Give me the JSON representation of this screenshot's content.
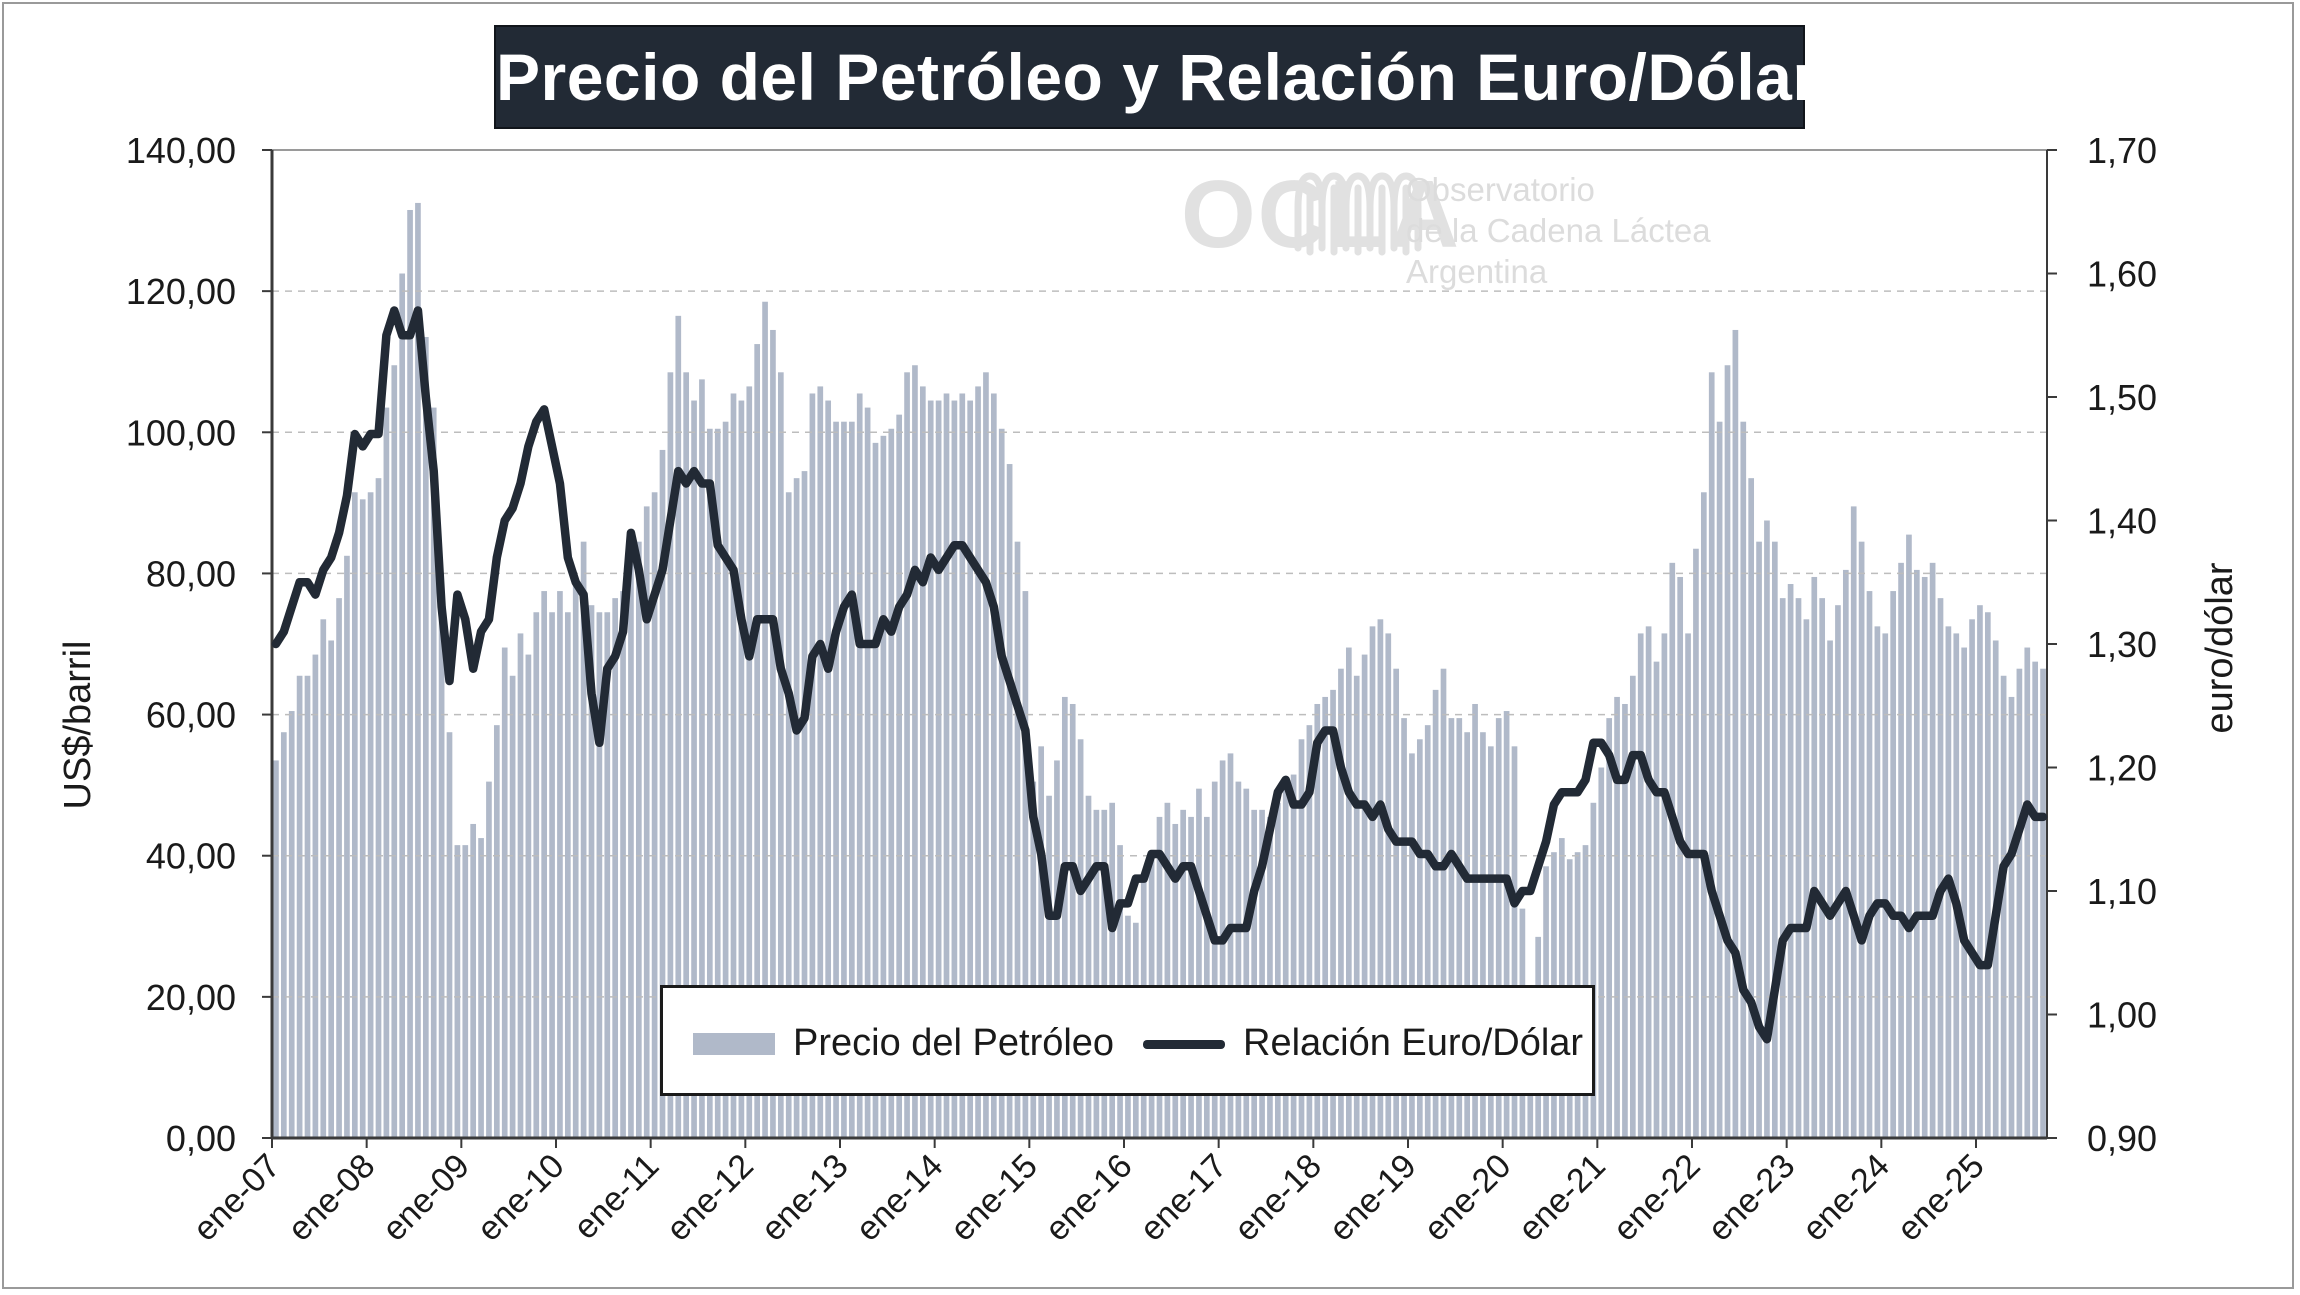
{
  "title": "Precio del Petróleo y Relación Euro/Dólar",
  "logo": {
    "name": "OCLA",
    "line1": "Observatorio",
    "line2": "de la Cadena Láctea",
    "line3": "Argentina"
  },
  "legend": {
    "bars_label": "Precio del Petróleo",
    "line_label": "Relación Euro/Dólar"
  },
  "colors": {
    "bars": "#b0b9c9",
    "line": "#222a35",
    "grid": "#bdbdbd",
    "title_bg": "#222a35"
  },
  "chart_data": {
    "type": "bar",
    "title": "Precio del Petróleo y Relación Euro/Dólar",
    "x_tick_labels": [
      "ene-07",
      "ene-08",
      "ene-09",
      "ene-10",
      "ene-11",
      "ene-12",
      "ene-13",
      "ene-14",
      "ene-15",
      "ene-16",
      "ene-17",
      "ene-18",
      "ene-19",
      "ene-20",
      "ene-21",
      "ene-22",
      "ene-23",
      "ene-24",
      "ene-25"
    ],
    "y_left": {
      "label": "US$/barril",
      "range": [
        0,
        140
      ],
      "ticks": [
        "0,00",
        "20,00",
        "40,00",
        "60,00",
        "80,00",
        "100,00",
        "120,00",
        "140,00"
      ]
    },
    "y_right": {
      "label": "euro/dólar",
      "range": [
        0.9,
        1.7
      ],
      "ticks": [
        "0,90",
        "1,00",
        "1,10",
        "1,20",
        "1,30",
        "1,40",
        "1,50",
        "1,60",
        "1,70"
      ]
    },
    "grid": "horizontal dashed",
    "legend_position": "bottom-center",
    "series": [
      {
        "name": "Precio del Petróleo",
        "type": "bar",
        "axis": "left",
        "values": [
          53.5,
          57.5,
          60.5,
          65.5,
          65.5,
          68.5,
          73.5,
          70.5,
          76.5,
          82.5,
          91.5,
          90.5,
          91.5,
          93.5,
          103.5,
          109.5,
          122.5,
          131.5,
          132.5,
          113.5,
          103.5,
          76.5,
          57.5,
          41.5,
          41.5,
          44.5,
          42.5,
          50.5,
          58.5,
          69.5,
          65.5,
          71.5,
          68.5,
          74.5,
          77.5,
          74.5,
          77.5,
          74.5,
          79.5,
          84.5,
          75.5,
          74.5,
          74.5,
          76.5,
          77.5,
          81.5,
          84.5,
          89.5,
          91.5,
          97.5,
          108.5,
          116.5,
          108.5,
          104.5,
          107.5,
          100.5,
          100.5,
          101.5,
          105.5,
          104.5,
          106.5,
          112.5,
          118.5,
          114.5,
          108.5,
          91.5,
          93.5,
          94.5,
          105.5,
          106.5,
          104.5,
          101.5,
          101.5,
          101.5,
          105.5,
          103.5,
          98.5,
          99.5,
          100.5,
          102.5,
          108.5,
          109.5,
          106.5,
          104.5,
          104.5,
          105.5,
          104.5,
          105.5,
          104.5,
          106.5,
          108.5,
          105.5,
          100.5,
          95.5,
          84.5,
          77.5,
          50.5,
          55.5,
          48.5,
          53.5,
          62.5,
          61.5,
          56.5,
          48.5,
          46.5,
          46.5,
          47.5,
          41.5,
          31.5,
          30.5,
          36.5,
          39.5,
          45.5,
          47.5,
          44.5,
          46.5,
          45.5,
          49.5,
          45.5,
          50.5,
          53.5,
          54.5,
          50.5,
          49.5,
          46.5,
          46.5,
          45.5,
          47.5,
          49.5,
          51.5,
          56.5,
          58.5,
          61.5,
          62.5,
          63.5,
          66.5,
          69.5,
          65.5,
          68.5,
          72.5,
          73.5,
          71.5,
          66.5,
          59.5,
          54.5,
          56.5,
          58.5,
          63.5,
          66.5,
          59.5,
          59.5,
          57.5,
          61.5,
          57.5,
          55.5,
          59.5,
          60.5,
          55.5,
          32.5,
          18.5,
          28.5,
          38.5,
          40.5,
          42.5,
          39.5,
          40.5,
          41.5,
          47.5,
          52.5,
          59.5,
          62.5,
          61.5,
          65.5,
          71.5,
          72.5,
          67.5,
          71.5,
          81.5,
          79.5,
          71.5,
          83.5,
          91.5,
          108.5,
          101.5,
          109.5,
          114.5,
          101.5,
          93.5,
          84.5,
          87.5,
          84.5,
          76.5,
          78.5,
          76.5,
          73.5,
          79.5,
          76.5,
          70.5,
          75.5,
          80.5,
          89.5,
          84.5,
          77.5,
          72.5,
          71.5,
          77.5,
          81.5,
          85.5,
          80.5,
          79.5,
          81.5,
          76.5,
          72.5,
          71.5,
          69.5,
          73.5,
          75.5,
          74.5,
          70.5,
          65.5,
          62.5,
          66.5,
          69.5,
          67.5,
          66.5
        ]
      },
      {
        "name": "Relación Euro/Dólar",
        "type": "line",
        "axis": "right",
        "values": [
          1.3,
          1.31,
          1.33,
          1.35,
          1.35,
          1.34,
          1.36,
          1.37,
          1.39,
          1.42,
          1.47,
          1.46,
          1.47,
          1.47,
          1.55,
          1.57,
          1.55,
          1.55,
          1.57,
          1.5,
          1.44,
          1.33,
          1.27,
          1.34,
          1.32,
          1.28,
          1.31,
          1.32,
          1.37,
          1.4,
          1.41,
          1.43,
          1.46,
          1.48,
          1.49,
          1.46,
          1.43,
          1.37,
          1.35,
          1.34,
          1.26,
          1.22,
          1.28,
          1.29,
          1.31,
          1.39,
          1.36,
          1.32,
          1.34,
          1.36,
          1.4,
          1.44,
          1.43,
          1.44,
          1.43,
          1.43,
          1.38,
          1.37,
          1.36,
          1.32,
          1.29,
          1.32,
          1.32,
          1.32,
          1.28,
          1.26,
          1.23,
          1.24,
          1.29,
          1.3,
          1.28,
          1.31,
          1.33,
          1.34,
          1.3,
          1.3,
          1.3,
          1.32,
          1.31,
          1.33,
          1.34,
          1.36,
          1.35,
          1.37,
          1.36,
          1.37,
          1.38,
          1.38,
          1.37,
          1.36,
          1.35,
          1.33,
          1.29,
          1.27,
          1.25,
          1.23,
          1.16,
          1.13,
          1.08,
          1.08,
          1.12,
          1.12,
          1.1,
          1.11,
          1.12,
          1.12,
          1.07,
          1.09,
          1.09,
          1.11,
          1.11,
          1.13,
          1.13,
          1.12,
          1.11,
          1.12,
          1.12,
          1.1,
          1.08,
          1.06,
          1.06,
          1.07,
          1.07,
          1.07,
          1.1,
          1.12,
          1.15,
          1.18,
          1.19,
          1.17,
          1.17,
          1.18,
          1.22,
          1.23,
          1.23,
          1.2,
          1.18,
          1.17,
          1.17,
          1.16,
          1.17,
          1.15,
          1.14,
          1.14,
          1.14,
          1.13,
          1.13,
          1.12,
          1.12,
          1.13,
          1.12,
          1.11,
          1.11,
          1.11,
          1.11,
          1.11,
          1.11,
          1.09,
          1.1,
          1.1,
          1.12,
          1.14,
          1.17,
          1.18,
          1.18,
          1.18,
          1.19,
          1.22,
          1.22,
          1.21,
          1.19,
          1.19,
          1.21,
          1.21,
          1.19,
          1.18,
          1.18,
          1.16,
          1.14,
          1.13,
          1.13,
          1.13,
          1.1,
          1.08,
          1.06,
          1.05,
          1.02,
          1.01,
          0.99,
          0.98,
          1.02,
          1.06,
          1.07,
          1.07,
          1.07,
          1.1,
          1.09,
          1.08,
          1.09,
          1.1,
          1.08,
          1.06,
          1.08,
          1.09,
          1.09,
          1.08,
          1.08,
          1.07,
          1.08,
          1.08,
          1.08,
          1.1,
          1.11,
          1.09,
          1.06,
          1.05,
          1.04,
          1.04,
          1.08,
          1.12,
          1.13,
          1.15,
          1.17,
          1.16,
          1.16
        ]
      }
    ]
  }
}
